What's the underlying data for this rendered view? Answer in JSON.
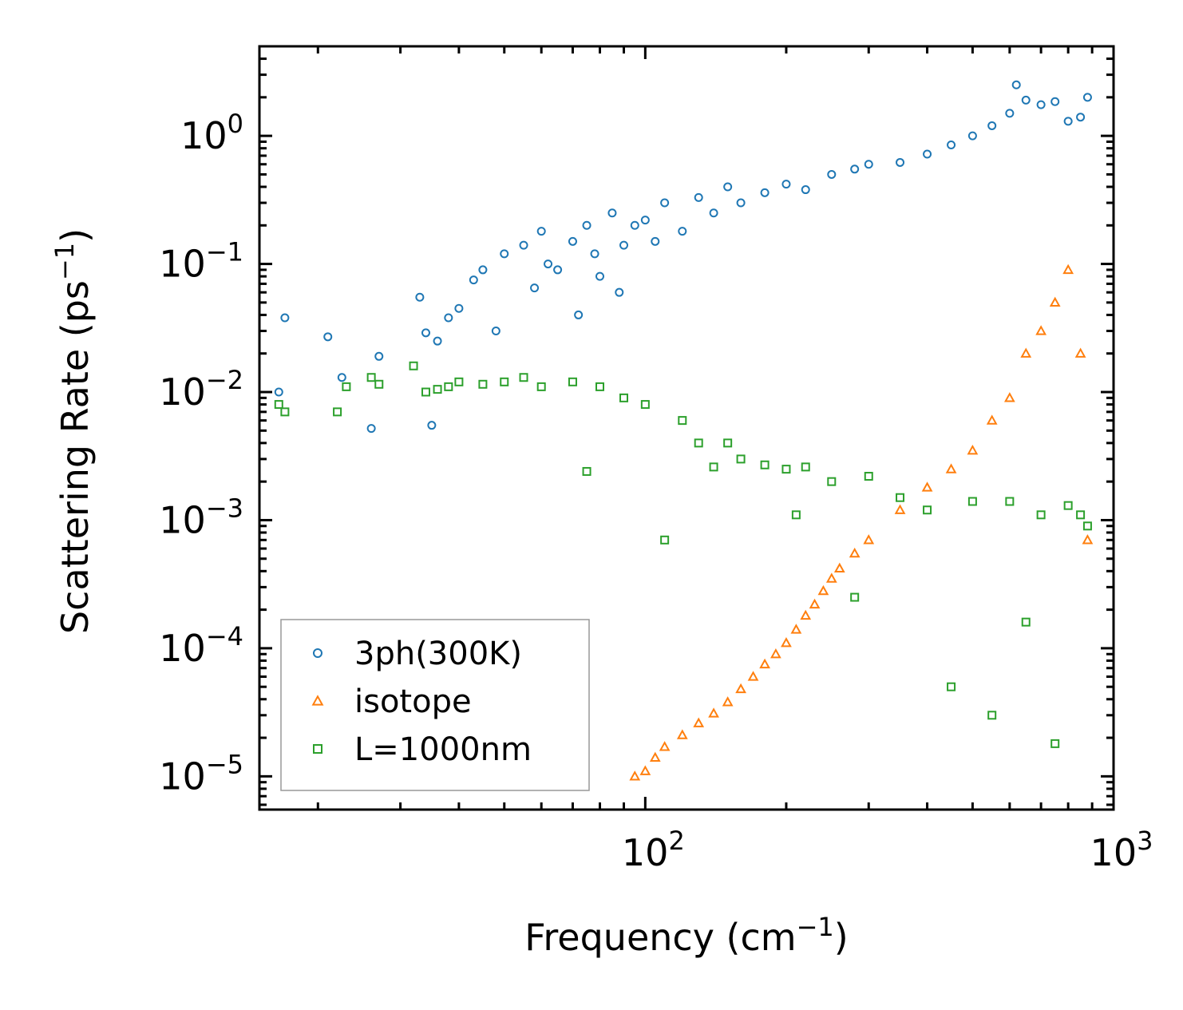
{
  "chart_data": {
    "type": "scatter",
    "xscale": "log",
    "yscale": "log",
    "xlim": [
      15,
      1000
    ],
    "ylim": [
      5.5e-06,
      5
    ],
    "xlabel": {
      "base": "Frequency (cm",
      "exp": "−1",
      "close": ")"
    },
    "ylabel": {
      "base": "Scattering Rate (ps",
      "exp": "−1",
      "close": ")"
    },
    "xticks": [
      {
        "value": 100,
        "base": "10",
        "exp": "2"
      },
      {
        "value": 1000,
        "base": "10",
        "exp": "3"
      }
    ],
    "yticks": [
      {
        "value": 1,
        "base": "10",
        "exp": "0"
      },
      {
        "value": 0.1,
        "base": "10",
        "exp": "−1"
      },
      {
        "value": 0.01,
        "base": "10",
        "exp": "−2"
      },
      {
        "value": 0.001,
        "base": "10",
        "exp": "−3"
      },
      {
        "value": 0.0001,
        "base": "10",
        "exp": "−4"
      },
      {
        "value": 1e-05,
        "base": "10",
        "exp": "−5"
      }
    ],
    "legend_position": "lower-left",
    "series": [
      {
        "name": "3ph(300K)",
        "marker": "circle",
        "color": "#1f77b4",
        "x": [
          16.5,
          17,
          21,
          22.5,
          26,
          27,
          33,
          34,
          35,
          36,
          38,
          40,
          43,
          45,
          48,
          50,
          55,
          58,
          60,
          62,
          65,
          70,
          72,
          75,
          78,
          80,
          85,
          88,
          90,
          95,
          100,
          105,
          110,
          120,
          130,
          140,
          150,
          160,
          180,
          200,
          220,
          250,
          280,
          300,
          350,
          400,
          450,
          500,
          550,
          600,
          620,
          650,
          700,
          750,
          800,
          850,
          880
        ],
        "y": [
          0.01,
          0.038,
          0.027,
          0.013,
          0.0052,
          0.019,
          0.055,
          0.029,
          0.0055,
          0.025,
          0.038,
          0.045,
          0.075,
          0.09,
          0.03,
          0.12,
          0.14,
          0.065,
          0.18,
          0.1,
          0.09,
          0.15,
          0.04,
          0.2,
          0.12,
          0.08,
          0.25,
          0.06,
          0.14,
          0.2,
          0.22,
          0.15,
          0.3,
          0.18,
          0.33,
          0.25,
          0.4,
          0.3,
          0.36,
          0.42,
          0.38,
          0.5,
          0.55,
          0.6,
          0.62,
          0.72,
          0.85,
          1.0,
          1.2,
          1.5,
          2.5,
          1.9,
          1.75,
          1.85,
          1.3,
          1.4,
          2.0
        ]
      },
      {
        "name": "isotope",
        "marker": "triangle",
        "color": "#ff7f0e",
        "x": [
          95,
          100,
          105,
          110,
          120,
          130,
          140,
          150,
          160,
          170,
          180,
          190,
          200,
          210,
          220,
          230,
          240,
          250,
          260,
          280,
          300,
          350,
          400,
          450,
          500,
          550,
          600,
          650,
          700,
          750,
          800,
          850,
          880
        ],
        "y": [
          1e-05,
          1.1e-05,
          1.4e-05,
          1.7e-05,
          2.1e-05,
          2.6e-05,
          3.1e-05,
          3.8e-05,
          4.8e-05,
          6e-05,
          7.5e-05,
          9e-05,
          0.00011,
          0.00014,
          0.00018,
          0.00022,
          0.00028,
          0.00035,
          0.00042,
          0.00055,
          0.0007,
          0.0012,
          0.0018,
          0.0025,
          0.0035,
          0.006,
          0.009,
          0.02,
          0.03,
          0.05,
          0.09,
          0.02,
          0.0007
        ]
      },
      {
        "name": "L=1000nm",
        "marker": "square",
        "color": "#2ca02c",
        "x": [
          16.5,
          17,
          22,
          23,
          26,
          27,
          32,
          34,
          36,
          38,
          40,
          45,
          50,
          55,
          60,
          70,
          75,
          80,
          90,
          100,
          110,
          120,
          130,
          140,
          150,
          160,
          180,
          200,
          210,
          220,
          250,
          280,
          300,
          350,
          400,
          450,
          500,
          550,
          600,
          650,
          700,
          750,
          800,
          850,
          880
        ],
        "y": [
          0.008,
          0.007,
          0.007,
          0.011,
          0.013,
          0.0115,
          0.016,
          0.01,
          0.0105,
          0.011,
          0.012,
          0.0115,
          0.012,
          0.013,
          0.011,
          0.012,
          0.0024,
          0.011,
          0.009,
          0.008,
          0.0007,
          0.006,
          0.004,
          0.0026,
          0.004,
          0.003,
          0.0027,
          0.0025,
          0.0011,
          0.0026,
          0.002,
          0.00025,
          0.0022,
          0.0015,
          0.0012,
          5e-05,
          0.0014,
          3e-05,
          0.0014,
          0.00016,
          0.0011,
          1.8e-05,
          0.0013,
          0.0011,
          0.0009
        ]
      }
    ]
  }
}
